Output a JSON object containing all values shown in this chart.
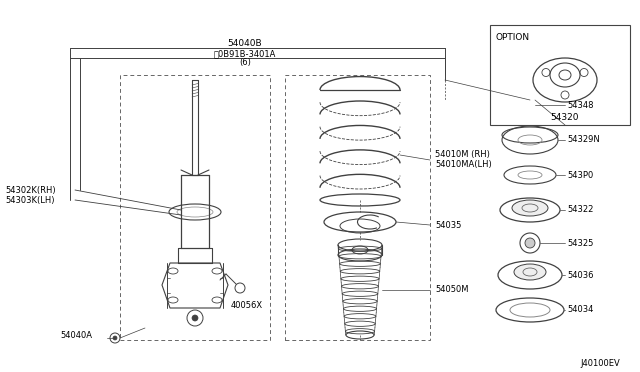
{
  "bg_color": "#ffffff",
  "line_color": "#404040",
  "text_color": "#000000",
  "fig_width": 6.4,
  "fig_height": 3.72,
  "diagram_id": "J40100EV",
  "label_54040B": "54040B",
  "label_N": "ⓝ0B91B-3401A",
  "label_6": "(6)",
  "label_54302K": "54302K(RH)",
  "label_54303K": "54303K(LH)",
  "label_54040A": "54040A",
  "label_40056X": "40056X",
  "label_54010M_RH": "54010M (RH)",
  "label_54010MA_LH": "54010MA(LH)",
  "label_54035": "54035",
  "label_54050M": "54050M",
  "label_54348": "54348",
  "label_54329N": "54329N",
  "label_54P0": "543P0",
  "label_54322": "54322",
  "label_54325": "54325",
  "label_54036": "54036",
  "label_54034": "54034",
  "label_OPTION": "OPTION",
  "label_54320_opt": "54320"
}
